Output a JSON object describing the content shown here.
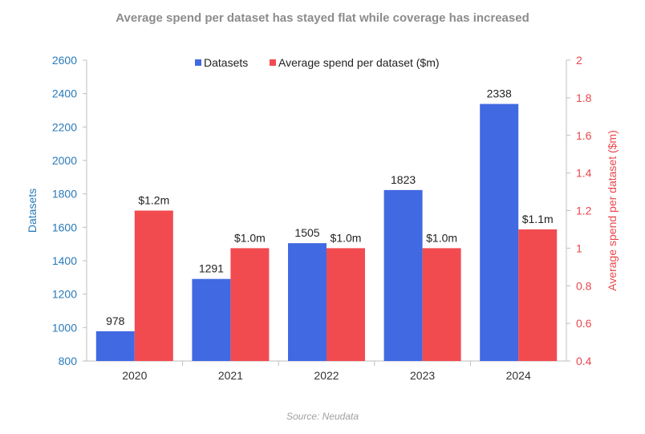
{
  "chart_data": {
    "type": "bar",
    "title": "Average spend per dataset has stayed flat while coverage has increased",
    "categories": [
      "2020",
      "2021",
      "2022",
      "2023",
      "2024"
    ],
    "series": [
      {
        "name": "Datasets",
        "axis": "left",
        "color": "#4169e1",
        "values": [
          978,
          1291,
          1505,
          1823,
          2338
        ],
        "labels": [
          "978",
          "1291",
          "1505",
          "1823",
          "2338"
        ]
      },
      {
        "name": "Average spend per dataset ($m)",
        "axis": "right",
        "color": "#f24b4f",
        "values": [
          1.2,
          1.0,
          1.0,
          1.0,
          1.1
        ],
        "labels": [
          "$1.2m",
          "$1.0m",
          "$1.0m",
          "$1.0m",
          "$1.1m"
        ]
      }
    ],
    "y_left": {
      "label": "Datasets",
      "range": [
        800,
        2600
      ],
      "ticks": [
        "800",
        "1000",
        "1200",
        "1400",
        "1600",
        "1800",
        "2000",
        "2200",
        "2400",
        "2600"
      ],
      "color": "#2a7ab8"
    },
    "y_right": {
      "label": "Average spend per dataset ($m)",
      "range": [
        0.4,
        2.0
      ],
      "ticks": [
        "0.4",
        "0.6",
        "0.8",
        "1",
        "1.2",
        "1.4",
        "1.6",
        "1.8",
        "2"
      ],
      "color": "#e8474c"
    },
    "legend": "top-center",
    "grid": false
  },
  "source": "Source: Neudata"
}
